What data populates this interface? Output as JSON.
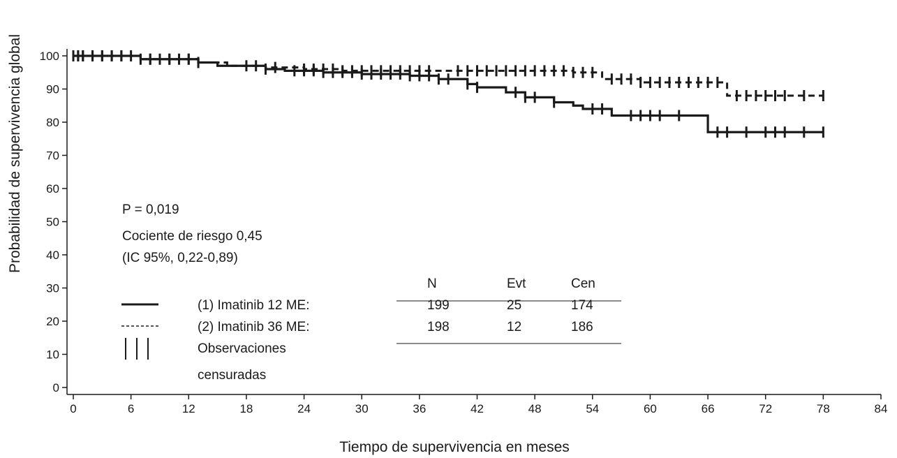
{
  "chart_data": {
    "type": "line",
    "xlabel": "Tiempo de supervivencia en meses",
    "ylabel": "Probabilidad de supervivencia global",
    "xlim": [
      0,
      84
    ],
    "ylim": [
      0,
      100
    ],
    "x_ticks": [
      0,
      6,
      12,
      18,
      24,
      30,
      36,
      42,
      48,
      54,
      60,
      66,
      72,
      78,
      84
    ],
    "y_ticks": [
      0,
      10,
      20,
      30,
      40,
      50,
      60,
      70,
      80,
      90,
      100
    ],
    "grid": false,
    "step": true,
    "series": [
      {
        "name": "(1) Imatinib 12 ME:",
        "line_style": "solid",
        "x": [
          0,
          7,
          13,
          15,
          20,
          22,
          26,
          30,
          35,
          38,
          41,
          42,
          45,
          47,
          50,
          52,
          53,
          56,
          65,
          66,
          78
        ],
        "y": [
          100,
          99,
          98,
          97,
          96,
          95.5,
          95,
          94.5,
          94,
          93,
          91.5,
          90.5,
          89,
          87.5,
          86,
          85,
          84,
          82,
          82,
          77,
          77
        ],
        "censor_x": [
          0,
          0.5,
          1,
          2,
          3,
          4,
          5,
          7,
          8,
          10,
          12,
          13,
          20,
          23,
          24,
          25,
          26,
          27,
          28,
          29,
          30,
          31,
          32,
          33,
          34,
          35,
          36,
          37,
          38,
          39,
          41,
          42,
          46,
          47,
          48,
          50,
          54,
          55,
          58,
          59,
          60,
          61,
          63,
          67,
          68,
          70,
          72,
          73,
          74,
          76,
          78
        ]
      },
      {
        "name": "(2) Imatinib 36 ME:",
        "line_style": "dashed",
        "x": [
          0,
          7,
          13,
          16,
          20,
          24,
          28,
          34,
          42,
          52,
          55,
          59,
          68,
          78
        ],
        "y": [
          100,
          99,
          98,
          97,
          96.5,
          96,
          95.5,
          95.5,
          95.5,
          95,
          93,
          92,
          88,
          88
        ],
        "censor_x": [
          0,
          0.5,
          1,
          2,
          3,
          4,
          5,
          6,
          8,
          9,
          10,
          11,
          12,
          18,
          19,
          21,
          24,
          25,
          26,
          27,
          28,
          29,
          30,
          31,
          32,
          33,
          34,
          35,
          36,
          37,
          40,
          41,
          42,
          43,
          44,
          45,
          46,
          47,
          48,
          49,
          50,
          51,
          52,
          53,
          54,
          56,
          57,
          58,
          59,
          60,
          61,
          62,
          63,
          64,
          65,
          66,
          67,
          69,
          70,
          71,
          72,
          73,
          74,
          76,
          78
        ]
      }
    ],
    "annotations": [
      "P = 0,019",
      "Cociente de riesgo 0,45",
      "(IC 95%, 0,22-0,89)"
    ],
    "legend": {
      "location": "lower-left",
      "entries": [
        "(1) Imatinib 12 ME:",
        "(2) Imatinib 36 ME:",
        "Observaciones",
        "censuradas"
      ]
    },
    "table": {
      "headers": [
        "N",
        "Evt",
        "Cen"
      ],
      "rows": [
        [
          "199",
          "25",
          "174"
        ],
        [
          "198",
          "12",
          "186"
        ]
      ]
    }
  }
}
